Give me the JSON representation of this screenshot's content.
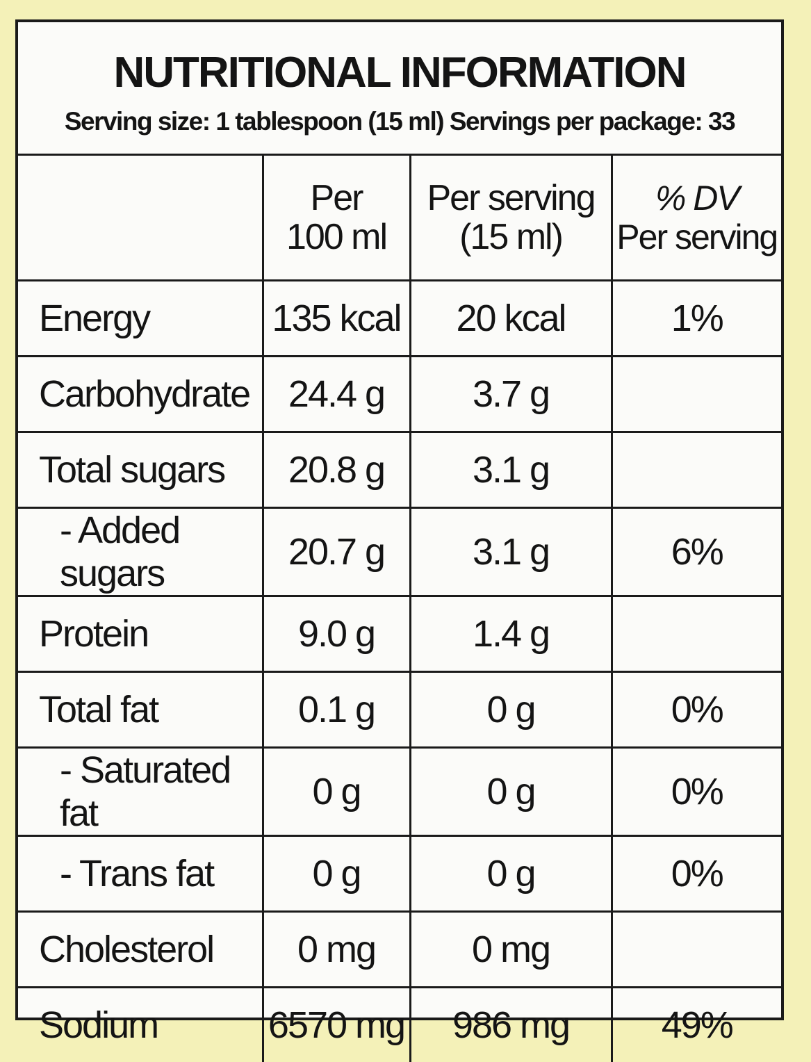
{
  "title": "NUTRITIONAL INFORMATION",
  "serving_line": "Serving size: 1 tablespoon (15 ml) Servings per package: 33",
  "columns": {
    "per100_line1": "Per",
    "per100_line2": "100 ml",
    "perserving_line1": "Per serving",
    "perserving_line2": "(15 ml)",
    "dv_line1": "% DV",
    "dv_line2": "Per serving"
  },
  "rows": [
    {
      "name": "Energy",
      "per100": "135 kcal",
      "perserving": "20 kcal",
      "dv": "1%"
    },
    {
      "name": "Carbohydrate",
      "per100": "24.4 g",
      "perserving": "3.7 g",
      "dv": ""
    },
    {
      "name": "Total sugars",
      "per100": "20.8 g",
      "perserving": "3.1 g",
      "dv": ""
    },
    {
      "name": "- Added sugars",
      "per100": "20.7 g",
      "perserving": "3.1 g",
      "dv": "6%"
    },
    {
      "name": "Protein",
      "per100": "9.0 g",
      "perserving": "1.4 g",
      "dv": ""
    },
    {
      "name": "Total fat",
      "per100": "0.1 g",
      "perserving": "0 g",
      "dv": "0%"
    },
    {
      "name": "- Saturated fat",
      "per100": "0 g",
      "perserving": "0 g",
      "dv": "0%"
    },
    {
      "name": "- Trans fat",
      "per100": "0 g",
      "perserving": "0 g",
      "dv": "0%"
    },
    {
      "name": "Cholesterol",
      "per100": "0 mg",
      "perserving": "0 mg",
      "dv": ""
    },
    {
      "name": "Sodium",
      "per100": "6570 mg",
      "perserving": "986 mg",
      "dv": "49%"
    }
  ]
}
